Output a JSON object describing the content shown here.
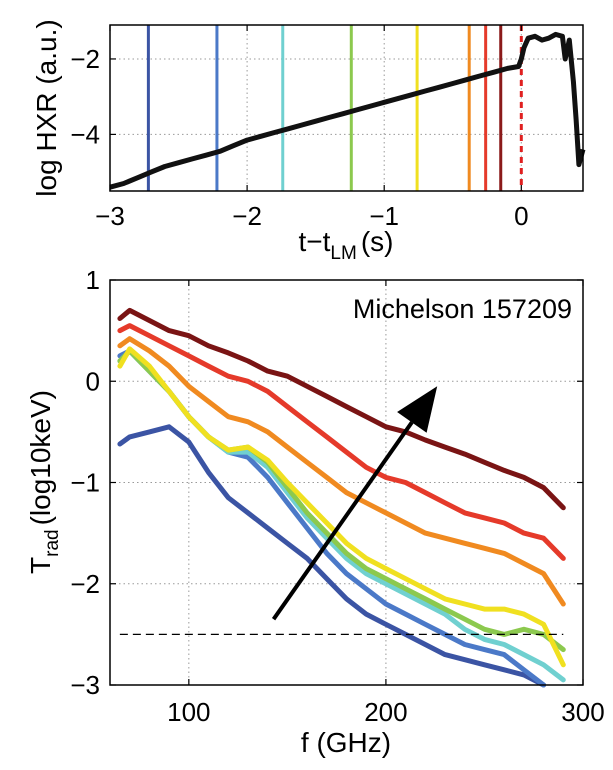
{
  "chart_data": [
    {
      "type": "line",
      "panel": "top",
      "xlabel_main": "t−t",
      "xlabel_sub": "LM",
      "xlabel_unit": "(s)",
      "ylabel": "log HXR (a.u.)",
      "xlim": [
        -3,
        0.45
      ],
      "ylim": [
        -5.5,
        -1.1
      ],
      "xticks": [
        -3,
        -2,
        -1,
        0
      ],
      "xtick_labels": [
        "−3",
        "−2",
        "−1",
        "0"
      ],
      "yticks": [
        -4,
        -2
      ],
      "ytick_labels": [
        "−4",
        "−2"
      ],
      "grid": true,
      "series": [
        {
          "color": "#111111",
          "x": [
            -3.0,
            -2.9,
            -2.8,
            -2.7,
            -2.6,
            -2.5,
            -2.4,
            -2.3,
            -2.2,
            -2.1,
            -2.0,
            -1.9,
            -1.8,
            -1.7,
            -1.6,
            -1.5,
            -1.4,
            -1.3,
            -1.2,
            -1.1,
            -1.0,
            -0.9,
            -0.8,
            -0.7,
            -0.6,
            -0.5,
            -0.4,
            -0.3,
            -0.2,
            -0.1,
            -0.02,
            0.0,
            0.02,
            0.05,
            0.1,
            0.15,
            0.2,
            0.25,
            0.3,
            0.32,
            0.35,
            0.38,
            0.4,
            0.42,
            0.45
          ],
          "y": [
            -5.4,
            -5.3,
            -5.15,
            -5.0,
            -4.85,
            -4.75,
            -4.65,
            -4.55,
            -4.45,
            -4.3,
            -4.15,
            -4.05,
            -3.95,
            -3.85,
            -3.75,
            -3.65,
            -3.55,
            -3.45,
            -3.35,
            -3.25,
            -3.15,
            -3.05,
            -2.95,
            -2.85,
            -2.75,
            -2.65,
            -2.55,
            -2.45,
            -2.35,
            -2.25,
            -2.2,
            -2.0,
            -1.7,
            -1.45,
            -1.4,
            -1.5,
            -1.45,
            -1.35,
            -1.4,
            -2.0,
            -1.5,
            -2.6,
            -3.6,
            -4.8,
            -4.4
          ]
        }
      ],
      "markers": [
        {
          "x": -2.72,
          "color": "#3b54a4",
          "style": "solid"
        },
        {
          "x": -2.22,
          "color": "#4b79c8",
          "style": "solid"
        },
        {
          "x": -1.74,
          "color": "#70d0d0",
          "style": "solid"
        },
        {
          "x": -1.24,
          "color": "#8cc94e",
          "style": "solid"
        },
        {
          "x": -0.76,
          "color": "#f0e020",
          "style": "solid"
        },
        {
          "x": -0.38,
          "color": "#f08a20",
          "style": "solid"
        },
        {
          "x": -0.26,
          "color": "#e53a2a",
          "style": "solid"
        },
        {
          "x": -0.15,
          "color": "#8b1a1a",
          "style": "solid"
        },
        {
          "x": 0.0,
          "color": "#e02020",
          "style": "dashed"
        }
      ]
    },
    {
      "type": "line",
      "panel": "bottom",
      "title": "Michelson 157209",
      "xlabel": "f (GHz)",
      "ylabel_main": "T",
      "ylabel_sub": "rad",
      "ylabel_unit": "(log10keV)",
      "xlim": [
        60,
        300
      ],
      "ylim": [
        -3,
        1
      ],
      "xticks": [
        100,
        200,
        300
      ],
      "xtick_labels": [
        "100",
        "200",
        "300"
      ],
      "yticks": [
        -3,
        -2,
        -1,
        0,
        1
      ],
      "ytick_labels": [
        "−3",
        "−2",
        "−1",
        "0",
        "1"
      ],
      "grid": true,
      "threshold": {
        "y": -2.5,
        "x_start": 65,
        "x_end": 290
      },
      "arrow": {
        "x_start": 143,
        "y_start": -2.35,
        "x_end": 226,
        "y_end": -0.05
      },
      "series": [
        {
          "color": "#3b54a4",
          "x": [
            65,
            70,
            80,
            90,
            100,
            110,
            120,
            130,
            140,
            150,
            160,
            170,
            180,
            190,
            200,
            210,
            220,
            230,
            240,
            250,
            260,
            270,
            280
          ],
          "y": [
            -0.62,
            -0.55,
            -0.5,
            -0.45,
            -0.6,
            -0.9,
            -1.15,
            -1.3,
            -1.45,
            -1.6,
            -1.75,
            -1.95,
            -2.15,
            -2.3,
            -2.4,
            -2.5,
            -2.6,
            -2.7,
            -2.75,
            -2.8,
            -2.85,
            -2.9,
            -3.0
          ]
        },
        {
          "color": "#4b79c8",
          "x": [
            65,
            70,
            80,
            90,
            100,
            110,
            120,
            130,
            140,
            150,
            160,
            170,
            180,
            190,
            200,
            210,
            220,
            230,
            240,
            250,
            260,
            270,
            280
          ],
          "y": [
            0.25,
            0.3,
            0.1,
            -0.1,
            -0.35,
            -0.55,
            -0.7,
            -0.75,
            -0.95,
            -1.2,
            -1.45,
            -1.7,
            -1.9,
            -2.05,
            -2.2,
            -2.3,
            -2.4,
            -2.5,
            -2.6,
            -2.65,
            -2.7,
            -2.85,
            -3.0
          ]
        },
        {
          "color": "#70d0d0",
          "x": [
            65,
            70,
            80,
            90,
            100,
            110,
            120,
            130,
            140,
            150,
            160,
            170,
            180,
            190,
            200,
            210,
            220,
            230,
            240,
            250,
            260,
            270,
            280,
            290
          ],
          "y": [
            0.2,
            0.3,
            0.1,
            -0.1,
            -0.35,
            -0.55,
            -0.7,
            -0.7,
            -0.85,
            -1.1,
            -1.35,
            -1.55,
            -1.75,
            -1.9,
            -2.0,
            -2.1,
            -2.2,
            -2.3,
            -2.45,
            -2.55,
            -2.6,
            -2.7,
            -2.8,
            -2.95
          ]
        },
        {
          "color": "#8cc94e",
          "x": [
            65,
            70,
            80,
            90,
            100,
            110,
            120,
            130,
            140,
            150,
            160,
            170,
            180,
            190,
            200,
            210,
            220,
            230,
            240,
            250,
            260,
            270,
            280,
            290
          ],
          "y": [
            0.2,
            0.3,
            0.1,
            -0.1,
            -0.35,
            -0.55,
            -0.68,
            -0.65,
            -0.8,
            -1.05,
            -1.3,
            -1.5,
            -1.7,
            -1.85,
            -1.95,
            -2.05,
            -2.15,
            -2.25,
            -2.35,
            -2.45,
            -2.5,
            -2.45,
            -2.5,
            -2.65
          ]
        },
        {
          "color": "#f0e020",
          "x": [
            65,
            70,
            80,
            90,
            100,
            110,
            120,
            130,
            140,
            150,
            160,
            170,
            180,
            190,
            200,
            210,
            220,
            230,
            240,
            250,
            260,
            270,
            280,
            290
          ],
          "y": [
            0.15,
            0.32,
            0.15,
            -0.1,
            -0.35,
            -0.55,
            -0.68,
            -0.65,
            -0.78,
            -1.0,
            -1.2,
            -1.4,
            -1.6,
            -1.75,
            -1.85,
            -1.95,
            -2.05,
            -2.15,
            -2.2,
            -2.25,
            -2.25,
            -2.3,
            -2.4,
            -2.8
          ]
        },
        {
          "color": "#f08a20",
          "x": [
            65,
            70,
            80,
            90,
            100,
            110,
            120,
            130,
            140,
            150,
            160,
            170,
            180,
            190,
            200,
            210,
            220,
            230,
            240,
            250,
            260,
            270,
            280,
            290
          ],
          "y": [
            0.35,
            0.42,
            0.3,
            0.15,
            -0.05,
            -0.2,
            -0.35,
            -0.4,
            -0.5,
            -0.65,
            -0.8,
            -0.95,
            -1.1,
            -1.2,
            -1.3,
            -1.4,
            -1.5,
            -1.55,
            -1.6,
            -1.65,
            -1.7,
            -1.8,
            -1.9,
            -2.2
          ]
        },
        {
          "color": "#e53a2a",
          "x": [
            65,
            70,
            80,
            90,
            100,
            110,
            120,
            130,
            140,
            150,
            160,
            170,
            180,
            190,
            200,
            210,
            220,
            230,
            240,
            250,
            260,
            270,
            280,
            290
          ],
          "y": [
            0.5,
            0.55,
            0.45,
            0.35,
            0.25,
            0.15,
            0.05,
            0.0,
            -0.1,
            -0.25,
            -0.4,
            -0.55,
            -0.7,
            -0.85,
            -0.95,
            -1.0,
            -1.1,
            -1.2,
            -1.3,
            -1.35,
            -1.4,
            -1.5,
            -1.55,
            -1.75
          ]
        },
        {
          "color": "#7a1414",
          "x": [
            65,
            70,
            80,
            90,
            100,
            110,
            120,
            130,
            140,
            150,
            160,
            170,
            180,
            190,
            200,
            210,
            220,
            230,
            240,
            250,
            260,
            270,
            280,
            290
          ],
          "y": [
            0.62,
            0.7,
            0.6,
            0.5,
            0.45,
            0.35,
            0.28,
            0.2,
            0.1,
            0.05,
            -0.05,
            -0.15,
            -0.25,
            -0.35,
            -0.45,
            -0.5,
            -0.58,
            -0.65,
            -0.72,
            -0.8,
            -0.88,
            -0.95,
            -1.05,
            -1.25
          ]
        }
      ]
    }
  ]
}
